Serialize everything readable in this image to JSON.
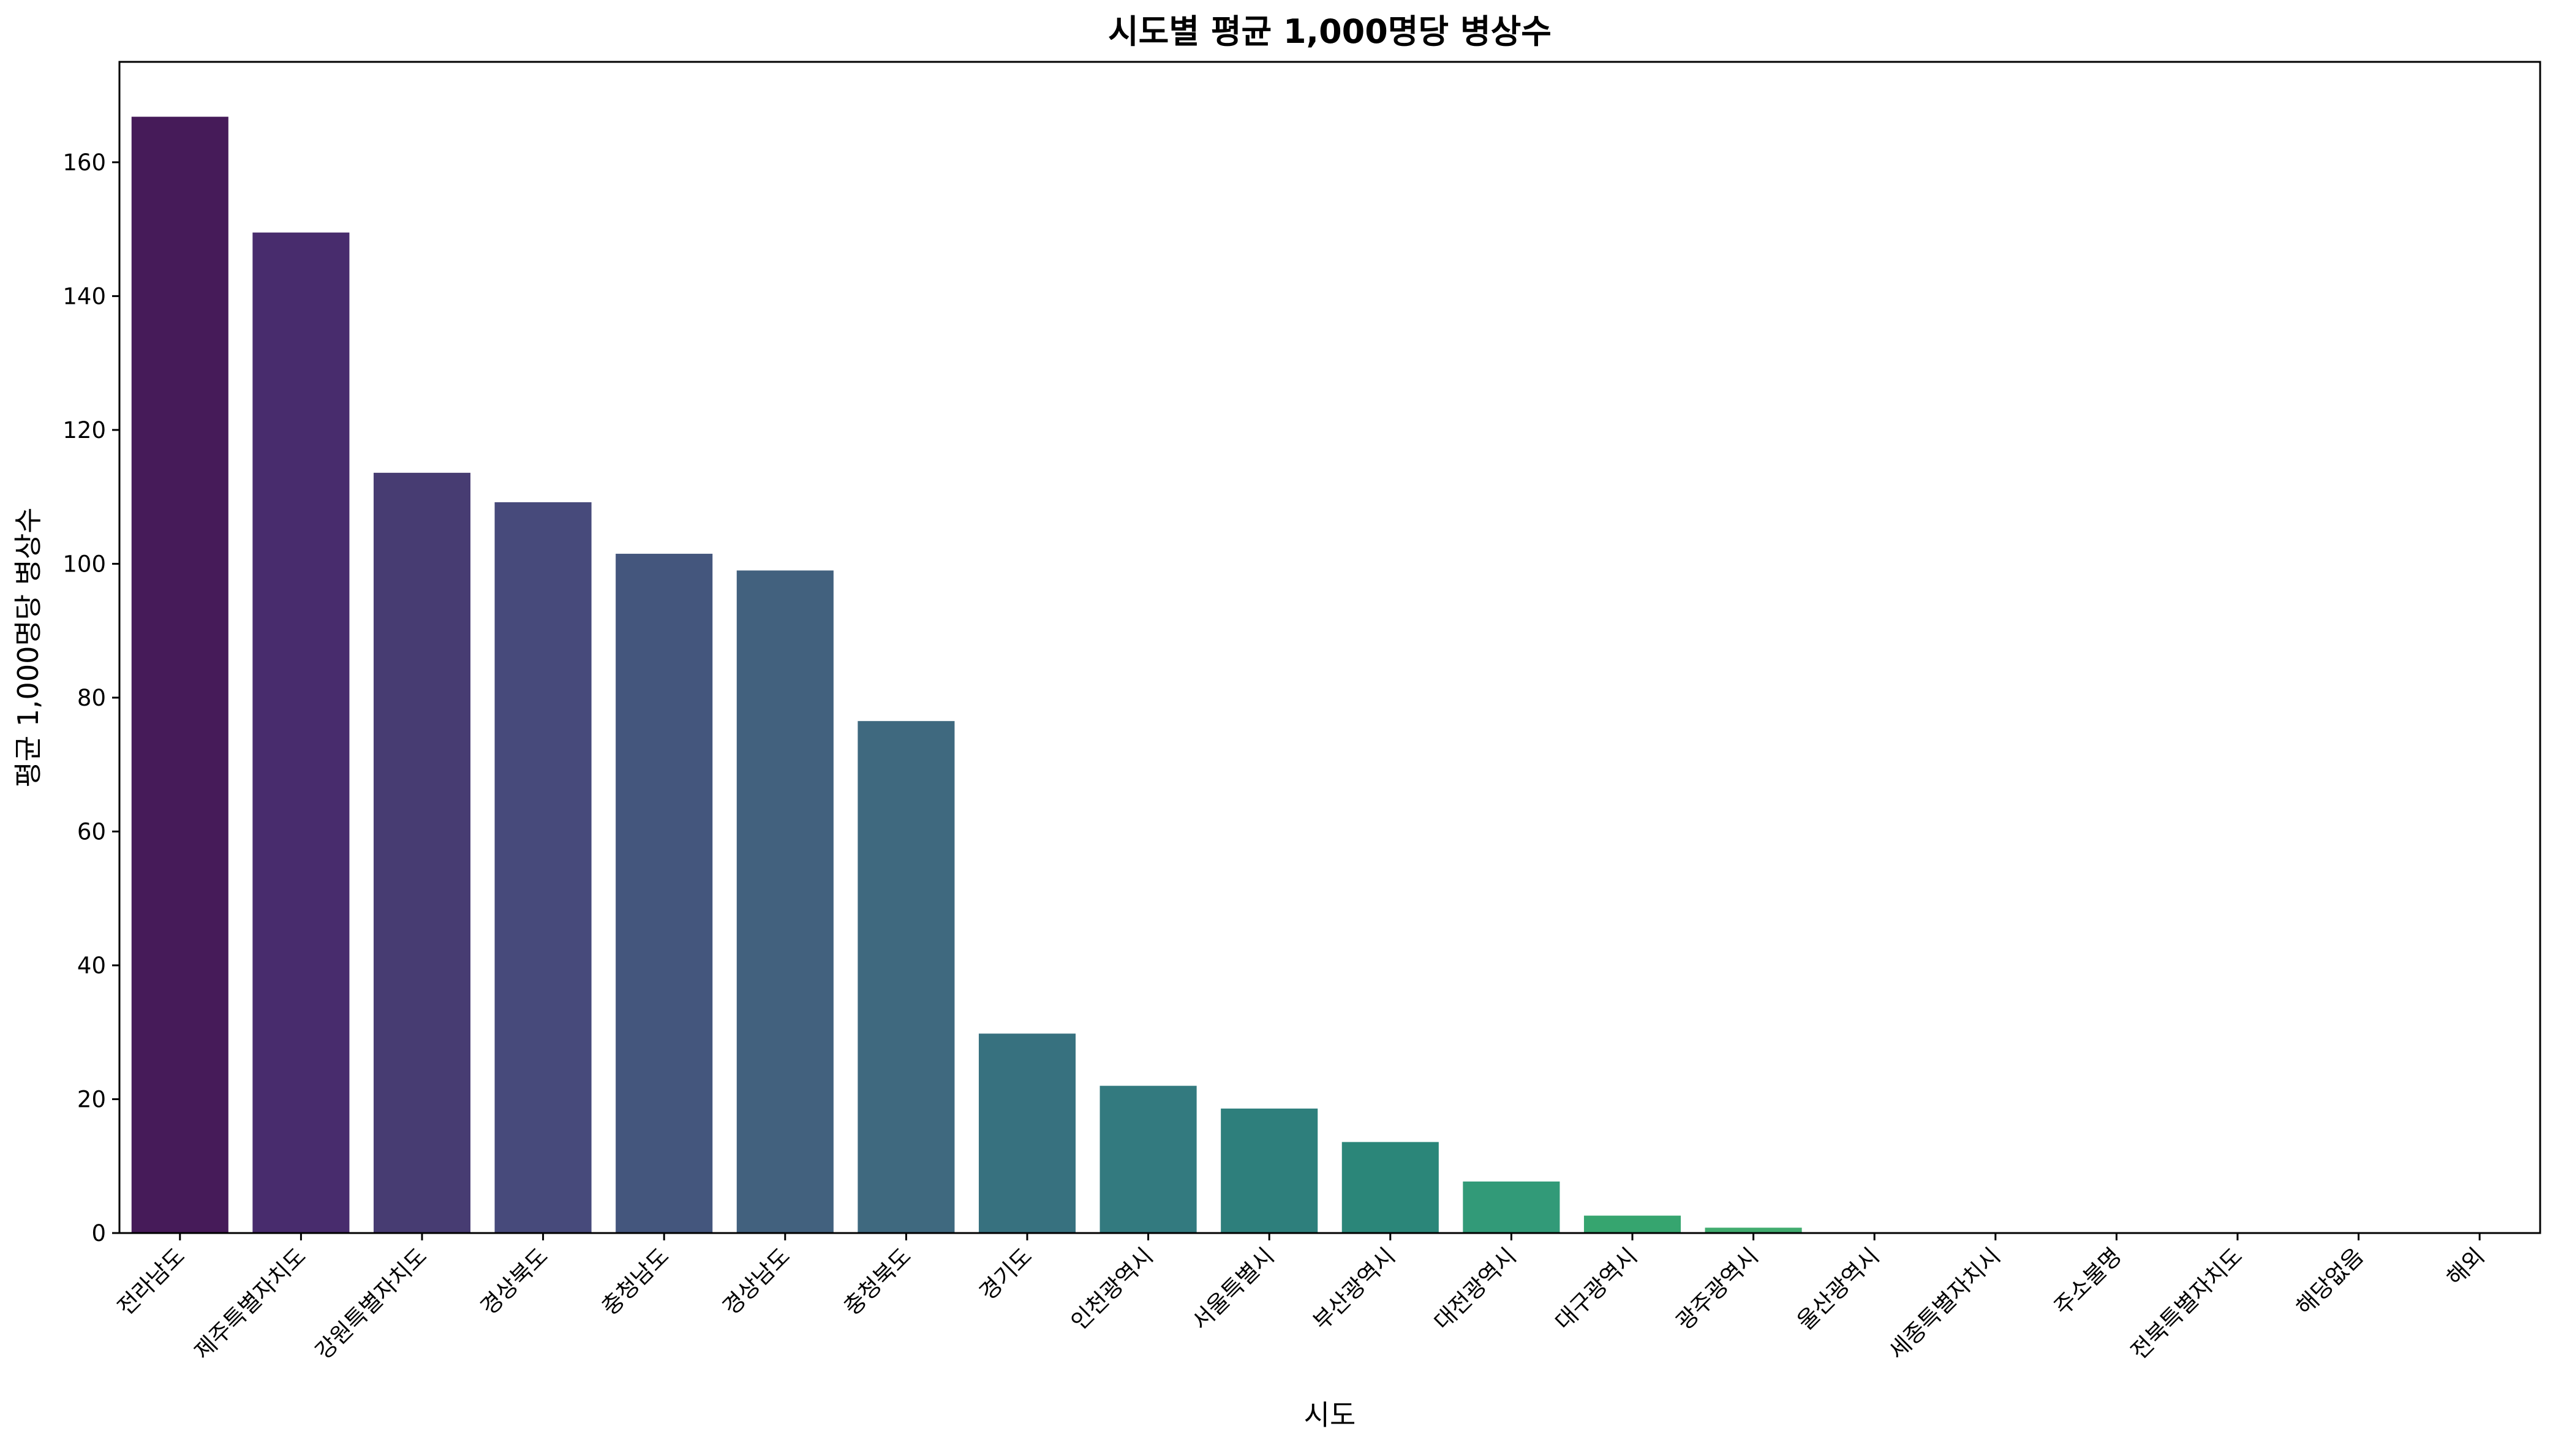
{
  "chart_data": {
    "type": "bar",
    "title": "시도별 평균 1,000명당 병상수",
    "xlabel": "시도",
    "ylabel": "평균 1,000명당 병상수",
    "ylim": [
      0,
      175
    ],
    "yticks": [
      0,
      20,
      40,
      60,
      80,
      100,
      120,
      140,
      160
    ],
    "grid": false,
    "legend": "none",
    "categories": [
      "전라남도",
      "제주특별자치도",
      "강원특별자치도",
      "경상북도",
      "충청남도",
      "경상남도",
      "충청북도",
      "경기도",
      "인천광역시",
      "서울특별시",
      "부산광역시",
      "대전광역시",
      "대구광역시",
      "광주광역시",
      "울산광역시",
      "세종특별자치시",
      "주소불명",
      "전북특별자치도",
      "해당없음",
      "해외"
    ],
    "values": [
      166.8,
      149.5,
      113.6,
      109.2,
      101.5,
      99.0,
      76.5,
      29.8,
      22.0,
      18.6,
      13.6,
      7.7,
      2.6,
      0.8,
      0,
      0,
      0,
      0,
      0,
      0
    ],
    "colors": [
      "#461b59",
      "#482c6d",
      "#473c72",
      "#474a7b",
      "#44567d",
      "#42617e",
      "#3f697f",
      "#37717f",
      "#337a7f",
      "#2e7f7c",
      "#2b8679",
      "#329a78",
      "#36a56f",
      "#41ac6f",
      "#4db66c",
      "#5bbd64",
      "#6ec45a",
      "#83ca50",
      "#9ed043",
      "#b9d636"
    ]
  }
}
